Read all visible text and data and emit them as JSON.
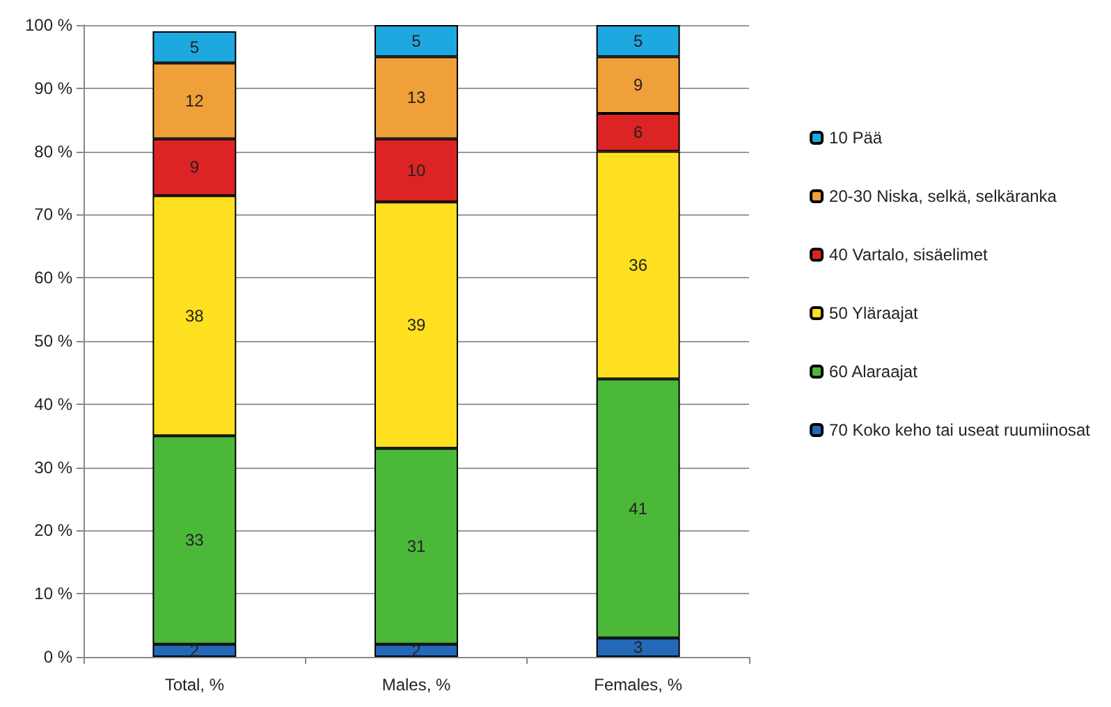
{
  "chart_data": {
    "type": "bar",
    "stacked": true,
    "categories": [
      "Total, %",
      "Males, %",
      "Females, %"
    ],
    "series": [
      {
        "name": "70 Koko keho tai useat ruumiinosat",
        "color": "#2468b8",
        "values": [
          2,
          2,
          3
        ]
      },
      {
        "name": "60 Alaraajat",
        "color": "#4cb83a",
        "values": [
          33,
          31,
          41
        ]
      },
      {
        "name": "50 Yläraajat",
        "color": "#ffe020",
        "values": [
          38,
          39,
          36
        ]
      },
      {
        "name": "40 Vartalo, sisäelimet",
        "color": "#dc2424",
        "values": [
          9,
          10,
          6
        ]
      },
      {
        "name": "20-30 Niska, selkä, selkäranka",
        "color": "#f0a038",
        "values": [
          12,
          13,
          9
        ]
      },
      {
        "name": "10 Pää",
        "color": "#1ea8e0",
        "values": [
          5,
          5,
          5
        ]
      }
    ],
    "ylim": [
      0,
      100
    ],
    "yticks": [
      {
        "value": 0,
        "label": "0 %"
      },
      {
        "value": 10,
        "label": "10 %"
      },
      {
        "value": 20,
        "label": "20 %"
      },
      {
        "value": 30,
        "label": "30 %"
      },
      {
        "value": 40,
        "label": "40 %"
      },
      {
        "value": 50,
        "label": "50 %"
      },
      {
        "value": 60,
        "label": "60 %"
      },
      {
        "value": 70,
        "label": "70 %"
      },
      {
        "value": 80,
        "label": "80 %"
      },
      {
        "value": 90,
        "label": "90 %"
      },
      {
        "value": 100,
        "label": "100 %"
      }
    ],
    "grid": "y",
    "legend": "right",
    "data_labels": true
  }
}
